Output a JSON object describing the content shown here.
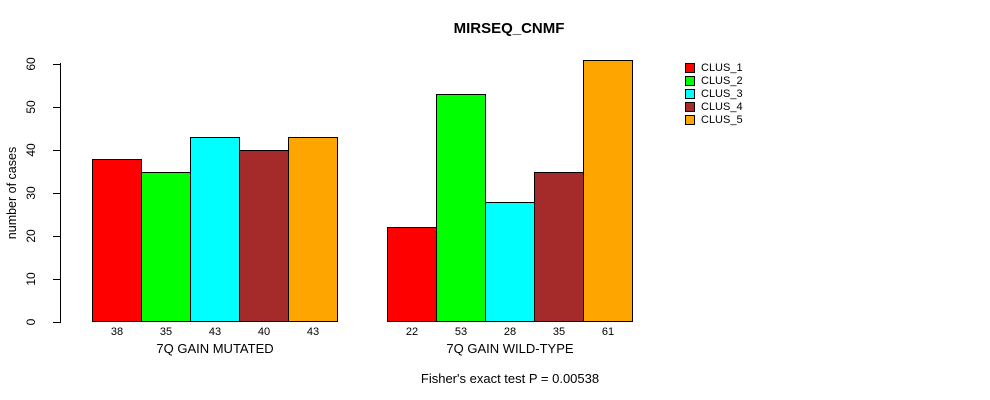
{
  "title": "MIRSEQ_CNMF",
  "ylabel": "number of cases",
  "caption": "Fisher's exact test P = 0.00538",
  "legend": {
    "entries": [
      {
        "label": "CLUS_1",
        "color": "#FF0000"
      },
      {
        "label": "CLUS_2",
        "color": "#00FF00"
      },
      {
        "label": "CLUS_3",
        "color": "#00FFFF"
      },
      {
        "label": "CLUS_4",
        "color": "#A52A2A"
      },
      {
        "label": "CLUS_5",
        "color": "#FFA500"
      }
    ]
  },
  "chart_data": {
    "type": "bar",
    "title": "MIRSEQ_CNMF",
    "xlabel": "",
    "ylabel": "number of cases",
    "ylim": [
      0,
      60
    ],
    "yticks": [
      0,
      10,
      20,
      30,
      40,
      50,
      60
    ],
    "grid": false,
    "legend_position": "right",
    "categories": [
      "7Q GAIN MUTATED",
      "7Q GAIN WILD-TYPE"
    ],
    "series": [
      {
        "name": "CLUS_1",
        "color": "#FF0000",
        "values": [
          38,
          22
        ]
      },
      {
        "name": "CLUS_2",
        "color": "#00FF00",
        "values": [
          35,
          53
        ]
      },
      {
        "name": "CLUS_3",
        "color": "#00FFFF",
        "values": [
          43,
          28
        ]
      },
      {
        "name": "CLUS_4",
        "color": "#A52A2A",
        "values": [
          40,
          35
        ]
      },
      {
        "name": "CLUS_5",
        "color": "#FFA500",
        "values": [
          43,
          61
        ]
      }
    ],
    "bar_value_labels": [
      [
        38,
        35,
        43,
        40,
        43
      ],
      [
        22,
        53,
        28,
        35,
        61
      ]
    ],
    "annotation": "Fisher's exact test P = 0.00538"
  }
}
